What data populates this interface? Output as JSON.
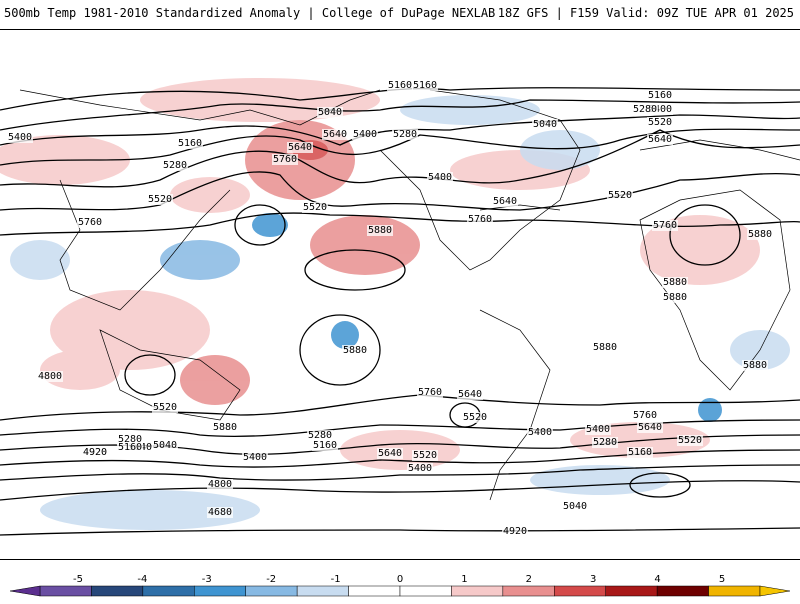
{
  "header": {
    "left": "500mb Temp 1981-2010 Standardized Anomaly | College of DuPage NEXLAB",
    "right": "18Z GFS | F159 Valid: 09Z TUE APR 01 2025"
  },
  "colorbar": {
    "ticks": [
      "-5",
      "-4",
      "-3",
      "-2",
      "-1",
      "0",
      "1",
      "2",
      "3",
      "4",
      "5"
    ],
    "colors": [
      "#6a4fa3",
      "#27477a",
      "#2e6fa8",
      "#3f94d1",
      "#87b9e3",
      "#c8dcf0",
      "#ffffff",
      "#ffffff",
      "#f6c9c9",
      "#e88f8f",
      "#d44a4a",
      "#a81818",
      "#6e0000",
      "#f0b400"
    ]
  },
  "contours": {
    "labels": [
      "5160",
      "5040",
      "5400",
      "5160",
      "5280",
      "5520",
      "5640",
      "5760",
      "5640",
      "5760",
      "5400",
      "5520",
      "5880",
      "5040",
      "5280",
      "5160",
      "5400",
      "5520",
      "5640",
      "5760",
      "5880",
      "5160",
      "5280",
      "5400",
      "5520",
      "5640",
      "5760",
      "5880",
      "5880",
      "5880",
      "5880",
      "5880",
      "5760",
      "5640",
      "5520",
      "5400",
      "5280",
      "5160",
      "5040",
      "4920",
      "4800",
      "4680",
      "5520",
      "5400",
      "5280",
      "5160",
      "5040",
      "4920",
      "5400",
      "5520",
      "5640",
      "5760",
      "5640",
      "5520",
      "5400",
      "5280",
      "5160",
      "5040",
      "4920",
      "4800",
      "5880",
      "5760"
    ]
  }
}
